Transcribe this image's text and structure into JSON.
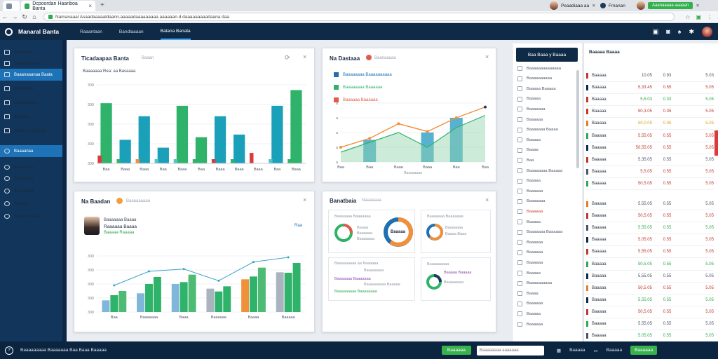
{
  "browser": {
    "tabs": [
      {
        "title": "Dcpoordan Haanboa Banta",
        "active": true
      },
      {
        "title": "",
        "active": false
      }
    ],
    "url": "Namanaaal Asaadaaaaaldaann.aaaaadaaaaaaaaa aaaaaan.d daaaaaaaaadaana daa",
    "profile_left": "Peaadiaaa aa",
    "profile_mid": "Fmanan",
    "profile_green": "Aaanaaaaa aaaaan"
  },
  "app": {
    "name": "Manaral Banta",
    "nav": [
      "Raaantaan",
      "Bandlaaaan",
      "Batana Banata"
    ],
    "active_nav": 2
  },
  "sidebar": {
    "items": [
      {
        "label": "Baaanaa",
        "icon": "dashboard-icon"
      },
      {
        "label": "Bamanaaaaan",
        "icon": "grid-icon"
      },
      {
        "label": "Baaanaaanaa Baata",
        "icon": "chart-icon",
        "active": true
      },
      {
        "label": "Baaaanaa",
        "icon": "list-icon"
      },
      {
        "label": "Baanaaaaaa",
        "icon": "folder-icon"
      },
      {
        "label": "Baaaaa",
        "icon": "document-icon"
      },
      {
        "label": "Baaaaaa Baaaaa",
        "icon": "report-icon"
      },
      {
        "label": "Baaaanaa",
        "icon": "settings-icon",
        "active": true
      },
      {
        "label": "Baaaanaa",
        "icon": "user-icon"
      },
      {
        "label": "Baaaaaaa",
        "icon": "clock-icon"
      },
      {
        "label": "Baaaanaa",
        "icon": "help-icon"
      },
      {
        "label": "Baaaaa",
        "icon": "bell-icon"
      },
      {
        "label": "Baaaaa Baaaa",
        "icon": "logout-icon"
      }
    ]
  },
  "card1": {
    "title": "Ticadaapaa Banta",
    "sub": "Baaan",
    "caption": "Baaaaaaa Rea: aa Basaaaa",
    "y_ticks": [
      "300",
      "300",
      "300",
      "300",
      "300"
    ],
    "x_labels": [
      "Baa",
      "Baaa",
      "Baaa",
      "Baa",
      "Baaa",
      "Baa",
      "Baaa",
      "Baaa",
      "Baaa",
      "Baa",
      "Baaa"
    ]
  },
  "card2": {
    "title": "Na Dastaaa",
    "sub": "Baanaaaaa",
    "legend": [
      {
        "label": "Baaaaaaaa Baaaaaaaaaa",
        "color": "#1f6fb2"
      },
      {
        "label": "Baaaaaaaa Baaaaaa",
        "color": "#2fb36b"
      },
      {
        "label": "Baaaaaa Baaaaaa",
        "color": "#e25b4a"
      }
    ],
    "y_ticks": [
      "a",
      "a",
      "a",
      "a",
      "a"
    ],
    "x_labels": [
      "Baa",
      "Baa",
      "Baaa",
      "Baaa",
      "Baa",
      "Baa"
    ],
    "footer": "Baaaaaaaa"
  },
  "card3": {
    "title": "Na Baadan",
    "sub": "Baaaaaaaaa",
    "person_name": "Baaaaaaa Baaaa",
    "person_role": "Raaaaaa Baaaa",
    "person_value": "Baaaaa Raaaaa",
    "badge": "Raa",
    "y_ticks": [
      "300",
      "300",
      "300",
      "300",
      "300"
    ],
    "x_labels": [
      "Baa",
      "Baaaaaaa",
      "Baaa",
      "Baaaaaa",
      "Baaaa",
      "Baaaaa"
    ]
  },
  "card4": {
    "title": "Banatbaia",
    "sub": "Naaaaaaa",
    "donut1_title": "Baaaaaaa Baaaaaaa",
    "donut1_lines": [
      "Baaaa",
      "Baaaaaa",
      "Baaaaaaa"
    ],
    "donut1_center": "Baaaaa",
    "donut2_title": "Baaaaaaa Baaaaaaa",
    "donut2_lines": [
      "Baaaaaaa",
      "Baaaa Baaa"
    ],
    "donut3_title": "Baaaaaaaaa aa Baaaaaa",
    "donut3_lines": [
      "Baaaaaaaa",
      "Baaaaaaa Baaaaaaa",
      "Baaaaaaaaa Baaaaa",
      "Baaaaaaaaa Baaaaaaaa"
    ],
    "donut4_title": "Baaaaaaaaa",
    "donut4_lines": [
      "Baaaaa Baaaaa",
      "Baaaaaaaa"
    ]
  },
  "right_list": {
    "header": "Baa Baaa y Baaaa",
    "items": [
      "Baaaaaaaaaaaaaa",
      "Baaaaaaaaaa",
      "Baaaaa Baaaaa",
      "Baaaaa",
      "Baaaaaaa",
      "Baaaaaa",
      "Baaaaaaa Baaaa",
      "Baaaaa",
      "Baaaa",
      "Baa",
      "Baaaaaaaa Baaaaa",
      "Baaaaa",
      "Baaaaaa",
      "Baaaaaaa",
      "Baaaaaa",
      "Baaaaa",
      "Baaaaaaa Baaaaaa",
      "Baaaaaa",
      "Baaaaaa",
      "Baaaaaa",
      "Baaaaa",
      "Baaaaaaaaaa",
      "Baaaa",
      "Baaaaaa",
      "Baaaaa",
      "Baaaaaa"
    ]
  },
  "table": {
    "header": "Baaaaa Baaaa",
    "rows": [
      {
        "name": "Baaaaa",
        "a": "10.05",
        "b": "0.93",
        "c": "5.03",
        "color": "#4a5563",
        "mark": "#c0392b"
      },
      {
        "name": "Baaaaa",
        "a": "5,33.45",
        "b": "0.55",
        "c": "5.05",
        "color": "#c0392b",
        "mark": "#0e2a47"
      },
      {
        "name": "Baaaaa",
        "a": "5,5.03",
        "b": "0.33",
        "c": "5.05",
        "color": "#2fa84f",
        "mark": "#c0392b"
      },
      {
        "name": "Baaaaa",
        "a": "50,3.05",
        "b": "0.35",
        "c": "5.05",
        "color": "#c0392b",
        "mark": "#c0392b"
      },
      {
        "name": "Baaaaa",
        "a": "50,0.05",
        "b": "0.05",
        "c": "5.05",
        "color": "#e0a020",
        "mark": "#e67e22"
      },
      {
        "name": "Baaaaa",
        "a": "5,55.05",
        "b": "0.55",
        "c": "5.05",
        "color": "#c0392b",
        "mark": "#2fa84f"
      },
      {
        "name": "Baaaaa",
        "a": "50,55.05",
        "b": "0.55",
        "c": "5.05",
        "color": "#c0392b",
        "mark": "#0e2a47"
      },
      {
        "name": "Baaaaa",
        "a": "5,35.05",
        "b": "0.55",
        "c": "5.05",
        "color": "#4a5563",
        "mark": "#c0392b"
      },
      {
        "name": "Baaaaa",
        "a": "5,5.05",
        "b": "0.55",
        "c": "5.05",
        "color": "#c0392b",
        "mark": "#4a5563"
      },
      {
        "name": "Baaaaa",
        "a": "50,5.05",
        "b": "0.55",
        "c": "5.05",
        "color": "#c0392b",
        "mark": "#2fa84f"
      },
      {
        "name": "Baaaaa",
        "a": "5,55.05",
        "b": "0.55",
        "c": "5.05",
        "color": "#4a5563",
        "mark": "#e67e22"
      },
      {
        "name": "Baaaaa",
        "a": "50,5.05",
        "b": "0.55",
        "c": "5.05",
        "color": "#c0392b",
        "mark": "#c0392b"
      },
      {
        "name": "Baaaaa",
        "a": "5,55.05",
        "b": "0.55",
        "c": "5.05",
        "color": "#2fa84f",
        "mark": "#4a5563"
      },
      {
        "name": "Baaaaa",
        "a": "5,05.05",
        "b": "0.55",
        "c": "5.05",
        "color": "#c0392b",
        "mark": "#0e2a47"
      },
      {
        "name": "Baaaaa",
        "a": "5,55.05",
        "b": "0.55",
        "c": "5.05",
        "color": "#c0392b",
        "mark": "#c0392b"
      },
      {
        "name": "Baaaaa",
        "a": "50,5.05",
        "b": "0.55",
        "c": "5.05",
        "color": "#2fa84f",
        "mark": "#2fa84f"
      },
      {
        "name": "Baaaaa",
        "a": "5,55.05",
        "b": "0.55",
        "c": "5.05",
        "color": "#4a5563",
        "mark": "#0e2a47"
      },
      {
        "name": "Baaaaa",
        "a": "50,5.05",
        "b": "0.55",
        "c": "5.05",
        "color": "#c0392b",
        "mark": "#e67e22"
      },
      {
        "name": "Baaaaa",
        "a": "5,55.05",
        "b": "0.55",
        "c": "5.05",
        "color": "#2fa84f",
        "mark": "#0e2a47"
      },
      {
        "name": "Baaaaa",
        "a": "50,5.05",
        "b": "0.55",
        "c": "5.05",
        "color": "#c0392b",
        "mark": "#c0392b"
      },
      {
        "name": "Baaaaa",
        "a": "5,55.05",
        "b": "0.55",
        "c": "5.05",
        "color": "#4a5563",
        "mark": "#2fa84f"
      },
      {
        "name": "Baaaaa",
        "a": "5,05.05",
        "b": "0.55",
        "c": "5.05",
        "color": "#2fa84f",
        "mark": "#4a5563"
      }
    ]
  },
  "statusbar": {
    "text": "Baaaaaaaaa Baaaaaaa Baa Baaa Baaaaa",
    "button": "Baaaaaa",
    "search_placeholder": "Baaaaaaaa aaaaaaa",
    "right_items": [
      "Baaaaa",
      "Baaaaa",
      "Baaaaaa"
    ]
  },
  "chart_data": [
    {
      "type": "bar",
      "categories": [
        "Baa",
        "Baaa",
        "Baaa",
        "Baa",
        "Baaa",
        "Baa",
        "Baaa",
        "Baaa",
        "Baaa",
        "Baa",
        "Baaa"
      ],
      "series": [
        {
          "values": [
            15,
            0,
            0,
            0,
            0,
            0,
            0,
            0,
            20,
            0,
            0
          ]
        },
        {
          "values": [
            115,
            45,
            90,
            30,
            110,
            50,
            90,
            55,
            0,
            110,
            140
          ]
        }
      ],
      "ylim": [
        0,
        150
      ]
    },
    {
      "type": "line",
      "categories": [
        "Baa",
        "Baa",
        "Baaa",
        "Baaa",
        "Baa",
        "Baa"
      ],
      "series": [
        {
          "values": [
            30,
            48,
            78,
            62,
            90,
            112
          ]
        },
        {
          "values": [
            20,
            40,
            60,
            30,
            70,
            95
          ]
        }
      ],
      "bars": [
        0,
        45,
        0,
        60,
        90,
        0
      ],
      "ylim": [
        0,
        120
      ]
    },
    {
      "type": "bar",
      "categories": [
        "Baa",
        "Baaaaaaa",
        "Baaa",
        "Baaaaaa",
        "Baaaa",
        "Baaaaaa"
      ],
      "series": [
        {
          "values": [
            25,
            40,
            60,
            50,
            70,
            85
          ]
        },
        {
          "values": [
            45,
            75,
            80,
            55,
            95,
            105
          ]
        }
      ],
      "ylim": [
        0,
        120
      ]
    }
  ]
}
